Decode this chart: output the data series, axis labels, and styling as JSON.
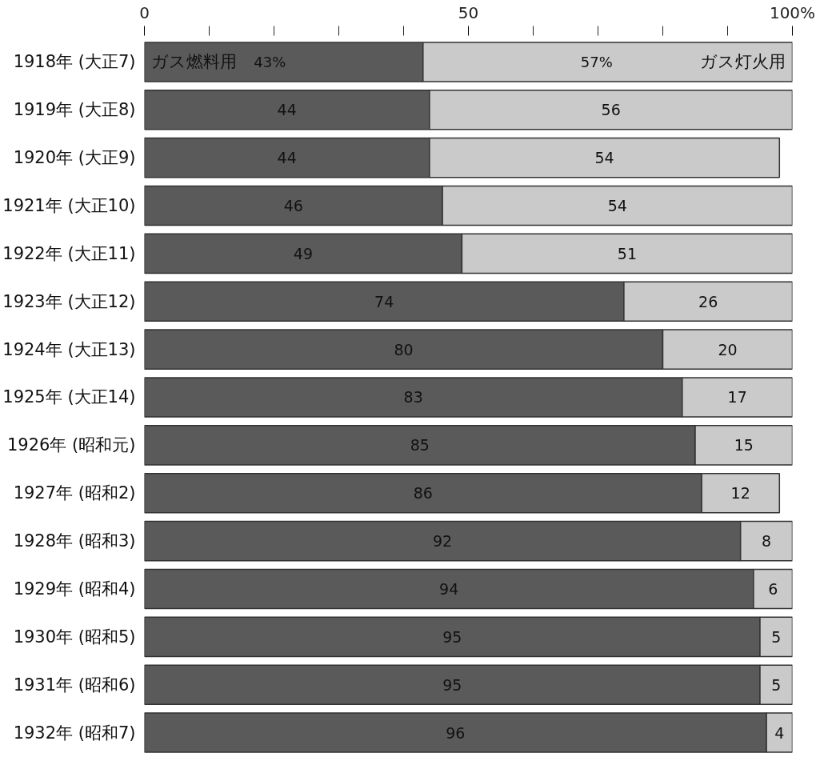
{
  "chart_data": {
    "type": "bar",
    "orientation": "horizontal",
    "stacked": true,
    "categories": [
      "1918年 (大正7)",
      "1919年 (大正8)",
      "1920年 (大正9)",
      "1921年 (大正10)",
      "1922年 (大正11)",
      "1923年 (大正12)",
      "1924年 (大正13)",
      "1925年 (大正14)",
      "1926年 (昭和元)",
      "1927年 (昭和2)",
      "1928年 (昭和3)",
      "1929年 (昭和4)",
      "1930年 (昭和5)",
      "1931年 (昭和6)",
      "1932年 (昭和7)"
    ],
    "series": [
      {
        "name": "ガス燃料用",
        "color": "#5a5a5a",
        "values": [
          43,
          44,
          44,
          46,
          49,
          74,
          80,
          83,
          85,
          86,
          92,
          94,
          95,
          95,
          96
        ],
        "value_labels": [
          "43%",
          "44",
          "44",
          "46",
          "49",
          "74",
          "80",
          "83",
          "85",
          "86",
          "92",
          "94",
          "95",
          "95",
          "96"
        ]
      },
      {
        "name": "ガス灯火用",
        "color": "#cacaca",
        "values": [
          57,
          56,
          54,
          54,
          51,
          26,
          20,
          17,
          15,
          12,
          8,
          6,
          5,
          5,
          4
        ],
        "value_labels": [
          "57%",
          "56",
          "54",
          "54",
          "51",
          "26",
          "20",
          "17",
          "15",
          "12",
          "8",
          "6",
          "5",
          "5",
          "4"
        ]
      }
    ],
    "xlim": [
      0,
      100
    ],
    "xticks": [
      0,
      {
        "value": 10,
        "label": null
      },
      {
        "value": 20,
        "label": null
      },
      {
        "value": 30,
        "label": null
      },
      {
        "value": 40,
        "label": null
      },
      50,
      {
        "value": 60,
        "label": null
      },
      {
        "value": 70,
        "label": null
      },
      {
        "value": 80,
        "label": null
      },
      {
        "value": 90,
        "label": null
      },
      {
        "value": 100,
        "label": "100%"
      }
    ],
    "grid": false
  }
}
